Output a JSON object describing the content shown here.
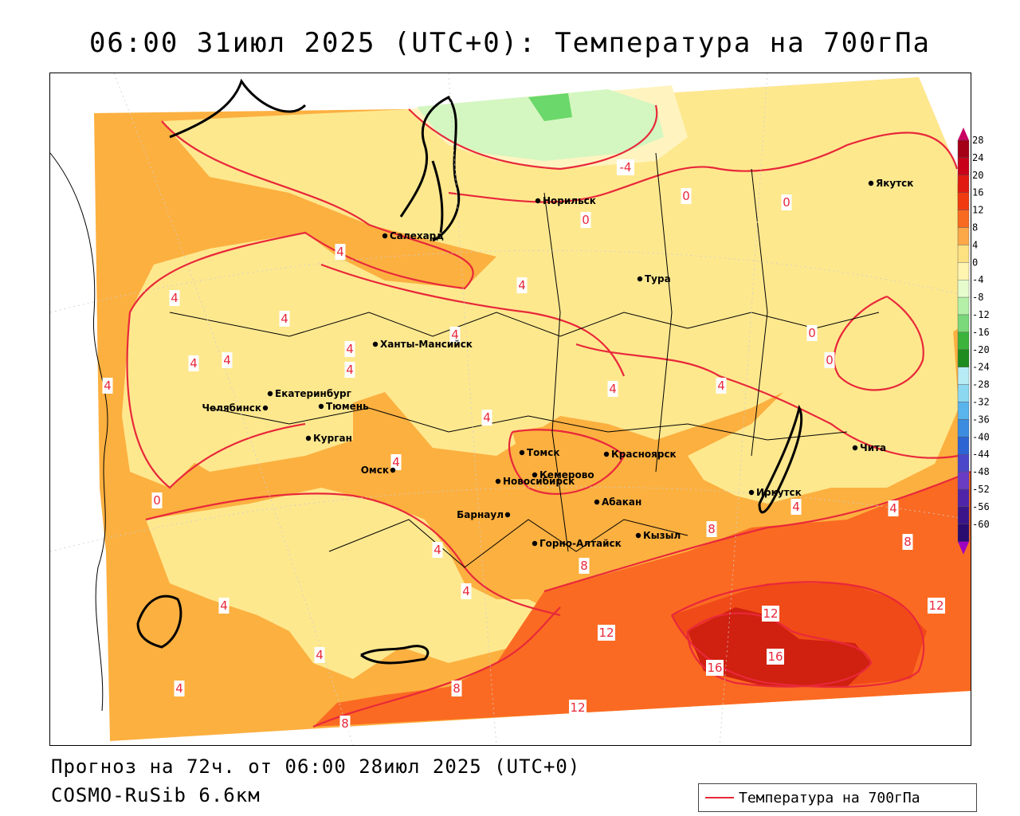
{
  "title": "06:00 31июл 2025 (UTC+0): Температура на 700гПа",
  "footer": {
    "forecast": "Прогноз на 72ч. от 06:00 28июл 2025 (UTC+0)",
    "model": "COSMO-RuSib 6.6км"
  },
  "legend": {
    "label": "Температура на 700гПа"
  },
  "colorbar": {
    "labels": [
      "28",
      "24",
      "20",
      "16",
      "12",
      "8",
      "4",
      "0",
      "-4",
      "-8",
      "-12",
      "-16",
      "-20",
      "-24",
      "-28",
      "-32",
      "-36",
      "-40",
      "-44",
      "-48",
      "-52",
      "-56",
      "-60"
    ],
    "colors": [
      "#a40016",
      "#c8001a",
      "#e01a10",
      "#f03a10",
      "#f86a20",
      "#fca848",
      "#fde080",
      "#fff4b0",
      "#e6fccc",
      "#b4f0a8",
      "#7ad87a",
      "#3cb43c",
      "#1e8c1e",
      "#b8ecf4",
      "#8cd8f0",
      "#5ab4ec",
      "#3c8ce0",
      "#2c64d4",
      "#4a48c8",
      "#6a3cc4",
      "#5024a8",
      "#3a1488",
      "#2a0c70"
    ],
    "top_color": "#c80064",
    "bottom_color": "#a000c0"
  },
  "cities": [
    {
      "name": "Норильск"
    },
    {
      "name": "Якутск"
    },
    {
      "name": "Салехард"
    },
    {
      "name": "Тура"
    },
    {
      "name": "Ханты-Мансийск"
    },
    {
      "name": "Екатеринбург"
    },
    {
      "name": "Тюмень"
    },
    {
      "name": "Челябинск"
    },
    {
      "name": "Курган"
    },
    {
      "name": "Омск"
    },
    {
      "name": "Новосибирск"
    },
    {
      "name": "Томск"
    },
    {
      "name": "Кемерово"
    },
    {
      "name": "Красноярск"
    },
    {
      "name": "Барнаул"
    },
    {
      "name": "Абакан"
    },
    {
      "name": "Горно-Алтайск"
    },
    {
      "name": "Кызыл"
    },
    {
      "name": "Иркутск"
    },
    {
      "name": "Чита"
    }
  ],
  "contour_labels": [
    "-4",
    "0",
    "0",
    "0",
    "0",
    "0",
    "0",
    "4",
    "4",
    "4",
    "4",
    "4",
    "4",
    "4",
    "4",
    "4",
    "4",
    "4",
    "4",
    "4",
    "4",
    "4",
    "4",
    "4",
    "4",
    "4",
    "4",
    "4",
    "8",
    "8",
    "8",
    "8",
    "8",
    "12",
    "12",
    "12",
    "12",
    "16",
    "16"
  ]
}
